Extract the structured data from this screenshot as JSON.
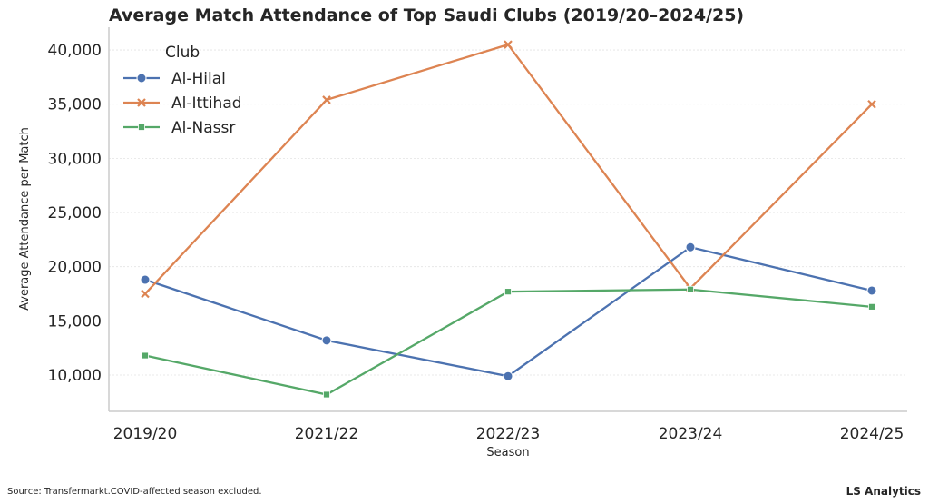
{
  "chart_data": {
    "type": "line",
    "title": "Average Match Attendance of Top Saudi Clubs (2019/20–2024/25)",
    "xlabel": "Season",
    "ylabel": "Average Attendance per Match",
    "categories": [
      "2019/20",
      "2021/22",
      "2022/23",
      "2023/24",
      "2024/25"
    ],
    "ylim": [
      6650,
      42100
    ],
    "yticks": [
      10000,
      15000,
      20000,
      25000,
      30000,
      35000,
      40000
    ],
    "ytick_labels": [
      "10,000",
      "15,000",
      "20,000",
      "25,000",
      "30,000",
      "35,000",
      "40,000"
    ],
    "grid": true,
    "legend": {
      "title": "Club",
      "placement": "top-left"
    },
    "series": [
      {
        "name": "Al-Hilal",
        "color": "#4c72b0",
        "marker": "circle",
        "values": [
          18800,
          13200,
          9900,
          21800,
          17800
        ]
      },
      {
        "name": "Al-Ittihad",
        "color": "#dd8452",
        "marker": "x",
        "values": [
          17500,
          35400,
          40500,
          18000,
          35000
        ]
      },
      {
        "name": "Al-Nassr",
        "color": "#55a868",
        "marker": "square",
        "values": [
          11800,
          8200,
          17700,
          17900,
          16300
        ]
      }
    ]
  },
  "footer": {
    "source": "Source: Transfermarkt.COVID-affected season excluded.",
    "brand": "LS Analytics"
  }
}
